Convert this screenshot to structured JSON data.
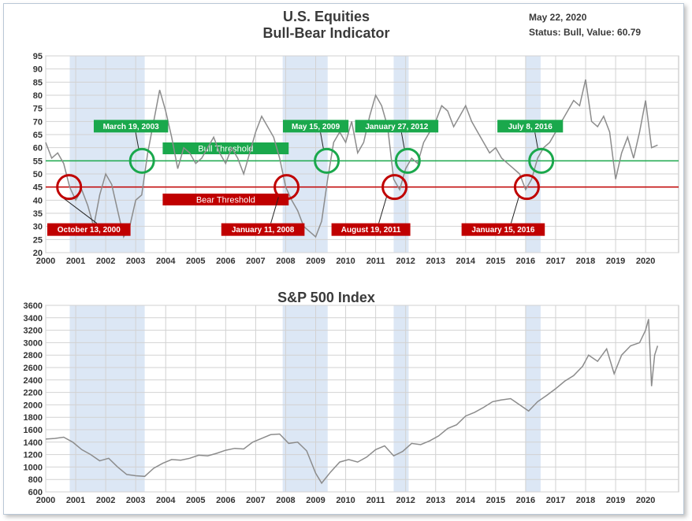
{
  "header": {
    "title_line1": "U.S. Equities",
    "title_line2": "Bull-Bear Indicator",
    "date": "May 22, 2020",
    "status": "Status: Bull, Value: 60.79"
  },
  "colors": {
    "bull": "#1aa84c",
    "bear": "#c00000",
    "shade": "#dce7f5",
    "line": "#8c8c8c",
    "grid": "#d2d2d2"
  },
  "chart_data": [
    {
      "type": "line",
      "title": "U.S. Equities Bull-Bear Indicator",
      "x_ticks": [
        "2000",
        "2001",
        "2002",
        "2003",
        "2004",
        "2005",
        "2006",
        "2007",
        "2008",
        "2009",
        "2010",
        "2011",
        "2012",
        "2013",
        "2014",
        "2015",
        "2016",
        "2017",
        "2018",
        "2019",
        "2020"
      ],
      "y_ticks": [
        95,
        90,
        85,
        80,
        75,
        70,
        65,
        60,
        55,
        50,
        45,
        40,
        35,
        30,
        25,
        20
      ],
      "ylim": [
        20,
        95
      ],
      "xlim": [
        2000.0,
        2021.1
      ],
      "bull_threshold": {
        "label": "Bull Threshold",
        "value": 55
      },
      "bear_threshold": {
        "label": "Bear Threshold",
        "value": 45
      },
      "shaded_periods": [
        [
          2000.8,
          2003.3
        ],
        [
          2007.9,
          2009.4
        ],
        [
          2011.6,
          2012.1
        ],
        [
          2016.0,
          2016.5
        ]
      ],
      "annotations": [
        {
          "label": "October 13, 2000",
          "x": 2000.78,
          "y": 45,
          "kind": "bear"
        },
        {
          "label": "March 19, 2003",
          "x": 2003.21,
          "y": 55,
          "kind": "bull"
        },
        {
          "label": "January 11, 2008",
          "x": 2008.03,
          "y": 45,
          "kind": "bear"
        },
        {
          "label": "May 15, 2009",
          "x": 2009.37,
          "y": 55,
          "kind": "bull"
        },
        {
          "label": "August 19, 2011",
          "x": 2011.63,
          "y": 45,
          "kind": "bear"
        },
        {
          "label": "January 27, 2012",
          "x": 2012.07,
          "y": 55,
          "kind": "bull"
        },
        {
          "label": "January 15, 2016",
          "x": 2016.04,
          "y": 45,
          "kind": "bear"
        },
        {
          "label": "July 8, 2016",
          "x": 2016.52,
          "y": 55,
          "kind": "bull"
        }
      ],
      "series": [
        {
          "x": [
            2000.0,
            2000.2,
            2000.4,
            2000.6,
            2000.8,
            2001.0,
            2001.2,
            2001.4,
            2001.6,
            2001.8,
            2002.0,
            2002.2,
            2002.4,
            2002.6,
            2002.8,
            2003.0,
            2003.2,
            2003.4,
            2003.6,
            2003.8,
            2004.0,
            2004.2,
            2004.4,
            2004.6,
            2004.8,
            2005.0,
            2005.2,
            2005.4,
            2005.6,
            2005.8,
            2006.0,
            2006.2,
            2006.4,
            2006.6,
            2006.8,
            2007.0,
            2007.2,
            2007.4,
            2007.6,
            2007.8,
            2008.0,
            2008.2,
            2008.4,
            2008.6,
            2008.8,
            2009.0,
            2009.2,
            2009.4,
            2009.6,
            2009.8,
            2010.0,
            2010.2,
            2010.4,
            2010.6,
            2010.8,
            2011.0,
            2011.2,
            2011.4,
            2011.6,
            2011.8,
            2012.0,
            2012.2,
            2012.4,
            2012.6,
            2012.8,
            2013.0,
            2013.2,
            2013.4,
            2013.6,
            2013.8,
            2014.0,
            2014.2,
            2014.4,
            2014.6,
            2014.8,
            2015.0,
            2015.2,
            2015.4,
            2015.6,
            2015.8,
            2016.0,
            2016.2,
            2016.4,
            2016.6,
            2016.8,
            2017.0,
            2017.2,
            2017.4,
            2017.6,
            2017.8,
            2018.0,
            2018.2,
            2018.4,
            2018.6,
            2018.8,
            2019.0,
            2019.2,
            2019.4,
            2019.6,
            2019.8,
            2020.0,
            2020.2,
            2020.4
          ],
          "y": [
            62,
            56,
            58,
            54,
            45,
            40,
            44,
            38,
            30,
            42,
            50,
            46,
            36,
            26,
            30,
            40,
            42,
            58,
            70,
            82,
            74,
            64,
            52,
            60,
            58,
            54,
            56,
            60,
            64,
            58,
            54,
            60,
            56,
            50,
            58,
            66,
            72,
            68,
            64,
            56,
            45,
            40,
            36,
            30,
            28,
            26,
            32,
            48,
            62,
            66,
            62,
            70,
            58,
            62,
            72,
            80,
            76,
            68,
            48,
            44,
            52,
            56,
            54,
            62,
            66,
            70,
            76,
            74,
            68,
            72,
            76,
            70,
            66,
            62,
            58,
            60,
            56,
            54,
            52,
            50,
            44,
            48,
            56,
            60,
            62,
            66,
            70,
            74,
            78,
            76,
            86,
            70,
            68,
            72,
            66,
            48,
            58,
            64,
            56,
            66,
            78,
            60,
            61
          ]
        },
        {
          "name": "",
          "x": [],
          "y": []
        }
      ]
    },
    {
      "type": "line",
      "title": "S&P 500 Index",
      "x_ticks": [
        "2000",
        "2001",
        "2002",
        "2003",
        "2004",
        "2005",
        "2006",
        "2007",
        "2008",
        "2009",
        "2010",
        "2011",
        "2012",
        "2013",
        "2014",
        "2015",
        "2016",
        "2017",
        "2018",
        "2019",
        "2020"
      ],
      "y_ticks": [
        3600,
        3400,
        3200,
        3000,
        2800,
        2600,
        2400,
        2200,
        2000,
        1800,
        1600,
        1400,
        1200,
        1000,
        800,
        600
      ],
      "ylim": [
        600,
        3600
      ],
      "xlim": [
        2000.0,
        2021.1
      ],
      "shaded_periods": [
        [
          2000.8,
          2003.3
        ],
        [
          2007.9,
          2009.4
        ],
        [
          2011.6,
          2012.1
        ],
        [
          2016.0,
          2016.5
        ]
      ],
      "series": [
        {
          "x": [
            2000.0,
            2000.3,
            2000.6,
            2000.9,
            2001.2,
            2001.5,
            2001.8,
            2002.1,
            2002.4,
            2002.7,
            2003.0,
            2003.3,
            2003.6,
            2003.9,
            2004.2,
            2004.5,
            2004.8,
            2005.1,
            2005.4,
            2005.7,
            2006.0,
            2006.3,
            2006.6,
            2006.9,
            2007.2,
            2007.5,
            2007.8,
            2008.1,
            2008.4,
            2008.7,
            2009.0,
            2009.2,
            2009.5,
            2009.8,
            2010.1,
            2010.4,
            2010.7,
            2011.0,
            2011.3,
            2011.6,
            2011.9,
            2012.2,
            2012.5,
            2012.8,
            2013.1,
            2013.4,
            2013.7,
            2014.0,
            2014.3,
            2014.6,
            2014.9,
            2015.2,
            2015.5,
            2015.8,
            2016.1,
            2016.4,
            2016.7,
            2017.0,
            2017.3,
            2017.6,
            2017.9,
            2018.1,
            2018.4,
            2018.7,
            2018.95,
            2019.2,
            2019.5,
            2019.8,
            2020.0,
            2020.1,
            2020.2,
            2020.3,
            2020.4
          ],
          "y": [
            1450,
            1460,
            1480,
            1400,
            1280,
            1200,
            1100,
            1140,
            1000,
            880,
            860,
            850,
            980,
            1060,
            1120,
            1110,
            1140,
            1190,
            1180,
            1220,
            1270,
            1300,
            1290,
            1400,
            1460,
            1520,
            1530,
            1380,
            1400,
            1260,
            900,
            740,
            920,
            1080,
            1120,
            1080,
            1160,
            1280,
            1340,
            1180,
            1250,
            1380,
            1360,
            1420,
            1500,
            1620,
            1680,
            1820,
            1880,
            1960,
            2050,
            2080,
            2100,
            2000,
            1900,
            2050,
            2150,
            2260,
            2380,
            2470,
            2620,
            2800,
            2700,
            2900,
            2500,
            2800,
            2950,
            3000,
            3200,
            3380,
            2300,
            2800,
            2950
          ]
        },
        {
          "name": "",
          "x": [],
          "y": []
        }
      ]
    }
  ]
}
